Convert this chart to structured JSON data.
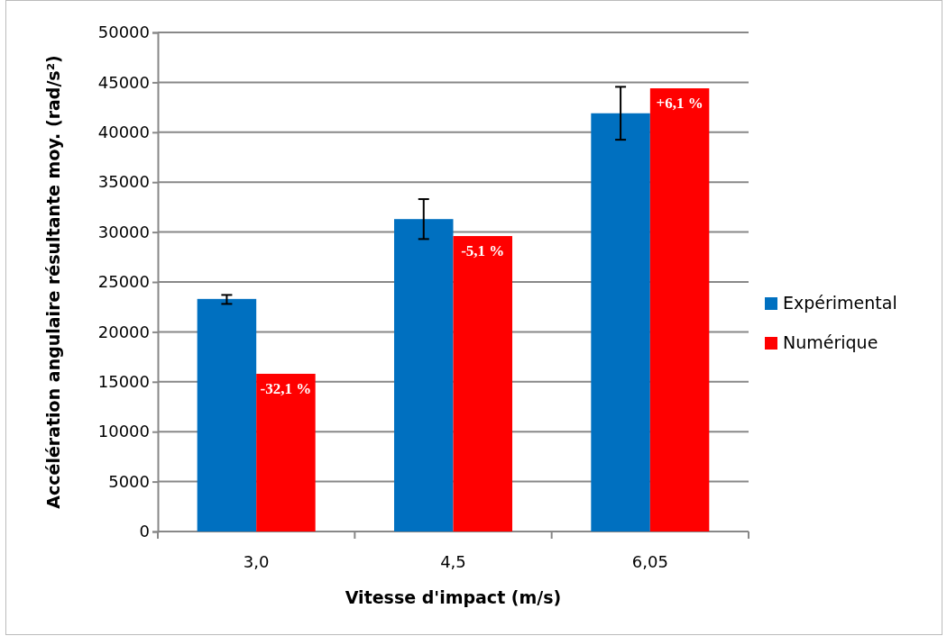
{
  "chart_data": {
    "type": "bar",
    "xlabel": "Vitesse d'impact (m/s)",
    "ylabel": "Accélération angulaire résultante moy. (rad/s²)",
    "categories": [
      "3,0",
      "4,5",
      "6,05"
    ],
    "series": [
      {
        "name": "Expérimental",
        "color": "#0070c0",
        "values": [
          23300,
          31300,
          41900
        ],
        "errors": [
          [
            22800,
            23700
          ],
          [
            29300,
            33300
          ],
          [
            39250,
            44550
          ]
        ]
      },
      {
        "name": "Numérique",
        "color": "#ff0000",
        "values": [
          15800,
          29600,
          44400
        ]
      }
    ],
    "annotations": [
      {
        "text": "-32,1 %",
        "x": "3,0",
        "y": 15800
      },
      {
        "text": "-5,1 %",
        "x": "4,5",
        "y": 29600
      },
      {
        "text": "+6,1 %",
        "x": "6,05",
        "y": 44400
      }
    ],
    "ylim": [
      0,
      50000
    ],
    "yticks": [
      0,
      5000,
      10000,
      15000,
      20000,
      25000,
      30000,
      35000,
      40000,
      45000,
      50000
    ],
    "grid": "y",
    "legend": "right"
  }
}
